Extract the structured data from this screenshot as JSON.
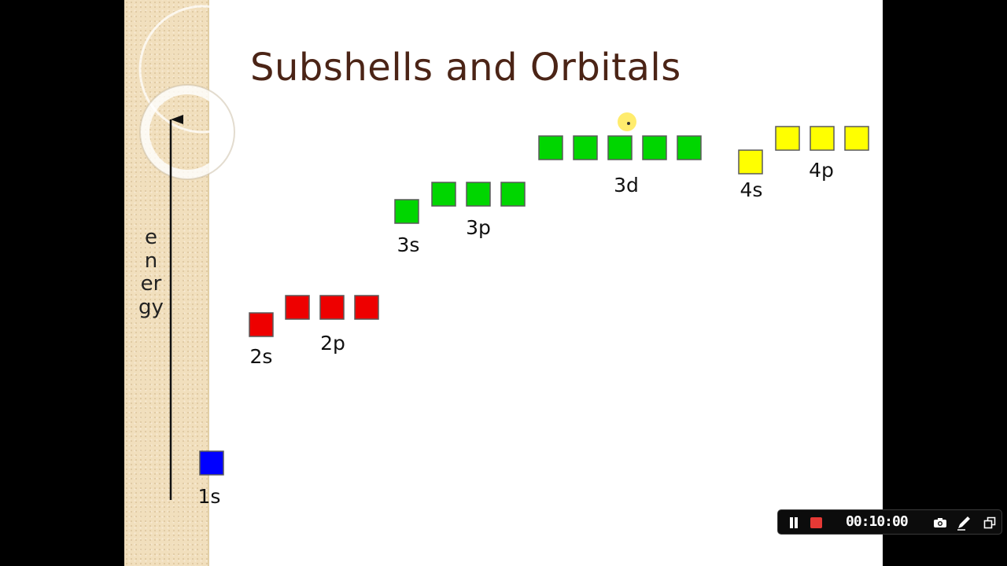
{
  "title": "Subshells and Orbitals",
  "energy_label": "energy",
  "colors": {
    "n1": "#0000ff",
    "n2": "#ee0000",
    "n3": "#00d600",
    "n4": "#ffff00",
    "title": "#4b2416",
    "band": "#f1dfbd"
  },
  "subshells": [
    {
      "label": "1s",
      "orbitals": 1,
      "shell": 1
    },
    {
      "label": "2s",
      "orbitals": 1,
      "shell": 2
    },
    {
      "label": "2p",
      "orbitals": 3,
      "shell": 2
    },
    {
      "label": "3s",
      "orbitals": 1,
      "shell": 3
    },
    {
      "label": "3p",
      "orbitals": 3,
      "shell": 3
    },
    {
      "label": "3d",
      "orbitals": 5,
      "shell": 3
    },
    {
      "label": "4s",
      "orbitals": 1,
      "shell": 4
    },
    {
      "label": "4p",
      "orbitals": 3,
      "shell": 4
    }
  ],
  "recorder": {
    "timer": "00:10:00",
    "pause_icon": "pause-icon",
    "stop_icon": "stop-record-icon",
    "camera_icon": "camera-icon",
    "pen_icon": "pen-icon",
    "window_icon": "window-icon"
  }
}
